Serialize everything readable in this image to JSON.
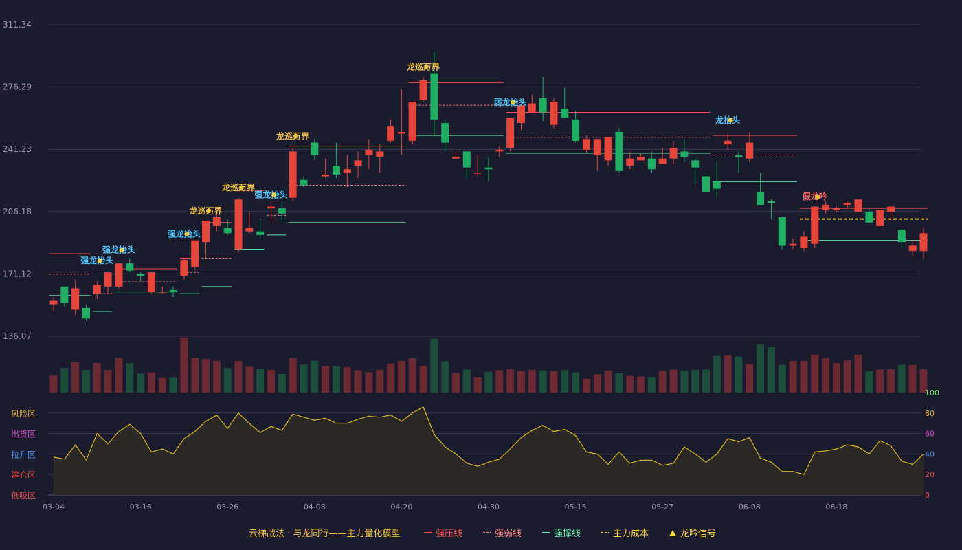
{
  "chart_data": [
    {
      "type": "candlestick",
      "title": "",
      "y_axis_labels": [
        "311.34",
        "276.29",
        "241.23",
        "206.18",
        "171.12",
        "136.07"
      ],
      "ylim": [
        136.07,
        311.34
      ],
      "x_tick_labels": [
        "03-04",
        "03-16",
        "03-26",
        "04-08",
        "04-20",
        "04-30",
        "05-15",
        "05-27",
        "06-08",
        "06-18"
      ],
      "x_tick_index": [
        0,
        8,
        16,
        24,
        32,
        40,
        48,
        56,
        64,
        72
      ],
      "ohlc": [
        [
          154,
          156,
          150,
          158
        ],
        [
          164,
          155,
          153,
          164
        ],
        [
          151,
          163,
          148,
          168
        ],
        [
          152,
          146,
          145,
          154
        ],
        [
          160,
          165,
          157,
          167
        ],
        [
          164,
          172,
          160,
          172
        ],
        [
          164,
          177,
          163,
          177
        ],
        [
          177,
          173,
          172,
          180
        ],
        [
          171,
          170,
          167,
          172
        ],
        [
          161,
          172,
          160,
          172
        ],
        [
          161,
          161,
          160,
          164
        ],
        [
          162,
          161,
          158,
          164
        ],
        [
          170,
          179,
          168,
          180
        ],
        [
          175,
          190,
          173,
          190
        ],
        [
          189,
          201,
          180,
          201
        ],
        [
          198,
          203,
          195,
          207
        ],
        [
          197,
          194,
          193,
          202
        ],
        [
          185,
          213,
          183,
          214
        ],
        [
          195,
          197,
          194,
          206
        ],
        [
          195,
          193,
          191,
          202
        ],
        [
          208,
          209,
          200,
          211
        ],
        [
          208,
          205,
          200,
          212
        ],
        [
          214,
          240,
          212,
          242
        ],
        [
          224,
          221,
          220,
          226
        ],
        [
          245,
          238,
          235,
          247
        ],
        [
          226,
          227,
          225,
          236
        ],
        [
          232,
          227,
          225,
          245
        ],
        [
          228,
          230,
          220,
          238
        ],
        [
          232,
          235,
          225,
          240
        ],
        [
          238,
          241,
          230,
          247
        ],
        [
          237,
          240,
          228,
          244
        ],
        [
          246,
          254,
          245,
          258
        ],
        [
          250,
          251,
          238,
          275
        ],
        [
          246,
          268,
          244,
          268
        ],
        [
          269,
          280,
          268,
          282
        ],
        [
          284,
          258,
          248,
          296
        ],
        [
          256,
          245,
          240,
          258
        ],
        [
          236,
          237,
          236,
          240
        ],
        [
          240,
          231,
          225,
          241
        ],
        [
          228,
          228,
          226,
          238
        ],
        [
          231,
          230,
          223,
          237
        ],
        [
          240,
          241,
          237,
          243
        ],
        [
          242,
          259,
          240,
          259
        ],
        [
          256,
          266,
          252,
          267
        ],
        [
          262,
          267,
          262,
          272
        ],
        [
          270,
          262,
          257,
          282
        ],
        [
          255,
          268,
          253,
          270
        ],
        [
          264,
          259,
          260,
          276
        ],
        [
          258,
          246,
          245,
          263
        ],
        [
          241,
          247,
          239,
          249
        ],
        [
          238,
          247,
          229,
          247
        ],
        [
          235,
          248,
          232,
          248
        ],
        [
          251,
          229,
          228,
          253
        ],
        [
          232,
          236,
          230,
          240
        ],
        [
          235,
          237,
          235,
          239
        ],
        [
          236,
          230,
          228,
          240
        ],
        [
          233,
          236,
          233,
          242
        ],
        [
          236,
          242,
          233,
          246
        ],
        [
          240,
          237,
          234,
          247
        ],
        [
          235,
          231,
          222,
          237
        ],
        [
          226,
          217,
          217,
          228
        ],
        [
          223,
          219,
          214,
          235
        ],
        [
          244,
          246,
          241,
          250
        ],
        [
          238,
          237,
          228,
          240
        ],
        [
          236,
          245,
          234,
          251
        ],
        [
          217,
          210,
          210,
          228
        ],
        [
          212,
          211,
          202,
          213
        ],
        [
          203,
          187,
          185,
          203
        ],
        [
          187,
          188,
          185,
          191
        ],
        [
          186,
          192,
          184,
          195
        ],
        [
          188,
          209,
          186,
          209
        ],
        [
          207,
          210,
          205,
          212
        ],
        [
          207,
          208,
          206,
          209
        ],
        [
          210,
          211,
          208,
          212
        ],
        [
          206,
          213,
          206,
          213
        ],
        [
          206,
          200,
          200,
          208
        ],
        [
          198,
          207,
          198,
          208
        ],
        [
          206,
          209,
          201,
          210
        ],
        [
          196,
          189,
          186,
          196
        ],
        [
          184,
          187,
          181,
          190
        ],
        [
          184,
          194,
          180,
          197
        ]
      ],
      "volume": [
        54,
        78,
        96,
        72,
        94,
        72,
        110,
        93,
        60,
        64,
        46,
        47,
        174,
        110,
        106,
        101,
        78,
        100,
        82,
        76,
        72,
        59,
        109,
        89,
        101,
        84,
        83,
        80,
        71,
        64,
        72,
        92,
        100,
        109,
        84,
        170,
        99,
        62,
        73,
        48,
        66,
        71,
        75,
        68,
        72,
        70,
        68,
        72,
        64,
        44,
        58,
        70,
        61,
        53,
        51,
        48,
        68,
        73,
        69,
        72,
        73,
        116,
        118,
        114,
        90,
        152,
        145,
        88,
        100,
        100,
        120,
        110,
        93,
        102,
        120,
        67,
        73,
        74,
        88,
        87,
        74
      ],
      "ma_line": [
        37,
        35,
        49,
        34,
        60,
        50,
        62,
        69,
        60,
        42,
        45,
        40,
        55,
        62,
        72,
        78,
        65,
        80,
        70,
        61,
        67,
        63,
        79,
        76,
        73,
        75,
        70,
        70,
        74,
        77,
        76,
        78,
        72,
        80,
        86,
        59,
        47,
        40,
        31,
        28,
        32,
        35,
        45,
        56,
        63,
        68,
        62,
        64,
        58,
        42,
        40,
        30,
        42,
        31,
        34,
        34,
        29,
        31,
        47,
        40,
        32,
        40,
        55,
        52,
        56,
        36,
        32,
        23,
        23,
        20,
        42,
        43,
        45,
        49,
        47,
        40,
        53,
        48,
        33,
        30,
        40
      ],
      "indicator_scale": [
        0,
        20,
        40,
        60,
        80,
        100
      ],
      "zones": [
        {
          "label": "风险区",
          "color": "#e8b130"
        },
        {
          "label": "出货区",
          "color": "#d946c8"
        },
        {
          "label": "拉升区",
          "color": "#4f97e8"
        },
        {
          "label": "建仓区",
          "color": "#e84a4a"
        },
        {
          "label": "低吸区",
          "color": "#e84a4a"
        }
      ],
      "annotations": [
        {
          "i": 4,
          "price": 177,
          "text": "强龙抬头",
          "color": "#4fc3f7"
        },
        {
          "i": 6,
          "price": 183,
          "text": "强龙抬头",
          "color": "#4fc3f7"
        },
        {
          "i": 12,
          "price": 192,
          "text": "强龙抬头",
          "color": "#4fc3f7"
        },
        {
          "i": 14,
          "price": 205,
          "text": "龙巡万界",
          "color": "#f0c040"
        },
        {
          "i": 17,
          "price": 218,
          "text": "龙巡万界",
          "color": "#f0c040"
        },
        {
          "i": 20,
          "price": 214,
          "text": "强龙抬头",
          "color": "#4fc3f7"
        },
        {
          "i": 22,
          "price": 247,
          "text": "龙巡万界",
          "color": "#f0c040"
        },
        {
          "i": 34,
          "price": 286,
          "text": "龙巡万界",
          "color": "#f0c040"
        },
        {
          "i": 42,
          "price": 266,
          "text": "弱龙抬头",
          "color": "#4fc3f7"
        },
        {
          "i": 62,
          "price": 256,
          "text": "龙抬头",
          "color": "#4fc3f7"
        },
        {
          "i": 70,
          "price": 213,
          "text": "假龙吟",
          "color": "#ff6b6b"
        }
      ],
      "levels": [
        {
          "kind": "pressure",
          "from": 0,
          "to": 3,
          "price": 182.5
        },
        {
          "kind": "pressure",
          "from": 6,
          "to": 11,
          "price": 174
        },
        {
          "kind": "pressure",
          "from": 12,
          "to": 13,
          "price": 180
        },
        {
          "kind": "pressure",
          "from": 14,
          "to": 16,
          "price": 200
        },
        {
          "kind": "pressure",
          "from": 17,
          "to": 19,
          "price": 218
        },
        {
          "kind": "pressure",
          "from": 22,
          "to": 32,
          "price": 243
        },
        {
          "kind": "pressure",
          "from": 33,
          "to": 41,
          "price": 279
        },
        {
          "kind": "pressure",
          "from": 42,
          "to": 60,
          "price": 262
        },
        {
          "kind": "pressure",
          "from": 61,
          "to": 68,
          "price": 249
        },
        {
          "kind": "pressure",
          "from": 69,
          "to": 80,
          "price": 208
        },
        {
          "kind": "weak",
          "from": 0,
          "to": 3,
          "price": 171
        },
        {
          "kind": "weak",
          "from": 4,
          "to": 5,
          "price": 160
        },
        {
          "kind": "weak",
          "from": 6,
          "to": 11,
          "price": 167
        },
        {
          "kind": "weak",
          "from": 12,
          "to": 13,
          "price": 172
        },
        {
          "kind": "weak",
          "from": 14,
          "to": 16,
          "price": 180
        },
        {
          "kind": "weak",
          "from": 20,
          "to": 21,
          "price": 204
        },
        {
          "kind": "weak",
          "from": 22,
          "to": 32,
          "price": 221
        },
        {
          "kind": "weak",
          "from": 33,
          "to": 41,
          "price": 266
        },
        {
          "kind": "weak",
          "from": 42,
          "to": 60,
          "price": 248
        },
        {
          "kind": "weak",
          "from": 61,
          "to": 68,
          "price": 238
        },
        {
          "kind": "support",
          "from": 0,
          "to": 3,
          "price": 159
        },
        {
          "kind": "support",
          "from": 4,
          "to": 5,
          "price": 150
        },
        {
          "kind": "support",
          "from": 6,
          "to": 11,
          "price": 161
        },
        {
          "kind": "support",
          "from": 12,
          "to": 13,
          "price": 160
        },
        {
          "kind": "support",
          "from": 14,
          "to": 16,
          "price": 164
        },
        {
          "kind": "support",
          "from": 17,
          "to": 19,
          "price": 185
        },
        {
          "kind": "support",
          "from": 20,
          "to": 21,
          "price": 193
        },
        {
          "kind": "support",
          "from": 22,
          "to": 32,
          "price": 200
        },
        {
          "kind": "support",
          "from": 33,
          "to": 41,
          "price": 249
        },
        {
          "kind": "support",
          "from": 42,
          "to": 60,
          "price": 239
        },
        {
          "kind": "support",
          "from": 61,
          "to": 68,
          "price": 223
        },
        {
          "kind": "support",
          "from": 69,
          "to": 80,
          "price": 190
        },
        {
          "kind": "cost",
          "from": 69,
          "to": 80,
          "price": 202
        }
      ],
      "legend": [
        {
          "key": "model",
          "text": "云梯战法 · 与龙同行——主力量化模型",
          "color": "#f0c040"
        },
        {
          "key": "pressure",
          "text": "强压线",
          "color": "#ff5252"
        },
        {
          "key": "weak",
          "text": "强弱线",
          "color": "#ff8a8a"
        },
        {
          "key": "support",
          "text": "强撑线",
          "color": "#69f0ae"
        },
        {
          "key": "cost",
          "text": "主力成本",
          "color": "#ffd740"
        },
        {
          "key": "signal",
          "text": "龙吟信号",
          "color": "#ffd740"
        }
      ],
      "colors": {
        "background": "#1b1b2e",
        "grid": "#3a3a52",
        "axis_text": "#9a9aaa",
        "up": "#e5463c",
        "down": "#1fae63",
        "vol_up": "#6b2a33",
        "vol_down": "#1d4d3b",
        "indicator_line": "#d8b820",
        "indicator_fill": "#2e2a26"
      }
    }
  ]
}
